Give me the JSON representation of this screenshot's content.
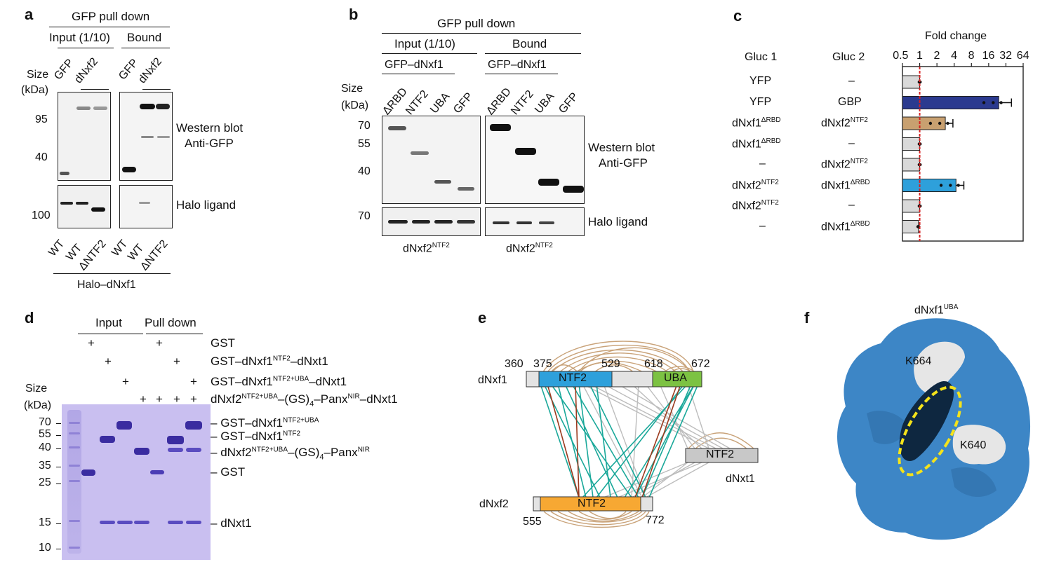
{
  "panel_a": {
    "letter": "a",
    "header": "GFP pull down",
    "input_label": "Input (1/10)",
    "bound_label": "Bound",
    "lane_labels": [
      "GFP",
      "dNxf2",
      "GFP",
      "dNxf2"
    ],
    "size_label": "Size",
    "kda_label": "(kDa)",
    "markers": [
      "95",
      "40",
      "100"
    ],
    "wb_label_1": "Western blot",
    "wb_label_2": "Anti-GFP",
    "halo_label": "Halo ligand",
    "bottom_lanes": [
      "WT",
      "WT",
      "ΔNTF2",
      "WT",
      "WT",
      "ΔNTF2"
    ],
    "footer": "Halo–dNxf1"
  },
  "panel_b": {
    "letter": "b",
    "header": "GFP pull down",
    "input_label": "Input (1/10)",
    "bound_label": "Bound",
    "bait_1": "GFP–dNxf1",
    "bait_2": "GFP–dNxf1",
    "lane_labels": [
      "ΔRBD",
      "NTF2",
      "UBA",
      "GFP",
      "ΔRBD",
      "NTF2",
      "UBA",
      "GFP"
    ],
    "size_label": "Size",
    "kda_label": "(kDa)",
    "markers": [
      "70",
      "55",
      "40",
      "70"
    ],
    "wb_label_1": "Western blot",
    "wb_label_2": "Anti-GFP",
    "halo_label": "Halo ligand",
    "footer_1": "dNxf2",
    "footer_1_sup": "NTF2",
    "footer_2": "dNxf2",
    "footer_2_sup": "NTF2"
  },
  "panel_c": {
    "letter": "c",
    "fold_label": "Fold change",
    "col1": "Gluc 1",
    "col2": "Gluc 2",
    "ticks": [
      "0.5",
      "1",
      "2",
      "4",
      "8",
      "16",
      "32",
      "64"
    ],
    "rows": [
      {
        "g1": "YFP",
        "g1_sup": "",
        "g2": "–",
        "g2_sup": ""
      },
      {
        "g1": "YFP",
        "g1_sup": "",
        "g2": "GBP",
        "g2_sup": ""
      },
      {
        "g1": "dNxf1",
        "g1_sup": "ΔRBD",
        "g2": "dNxf2",
        "g2_sup": "NTF2"
      },
      {
        "g1": "dNxf1",
        "g1_sup": "ΔRBD",
        "g2": "–",
        "g2_sup": ""
      },
      {
        "g1": "–",
        "g1_sup": "",
        "g2": "dNxf2",
        "g2_sup": "NTF2"
      },
      {
        "g1": "dNxf2",
        "g1_sup": "NTF2",
        "g2": "dNxf1",
        "g2_sup": "ΔRBD"
      },
      {
        "g1": "dNxf2",
        "g1_sup": "NTF2",
        "g2": "–",
        "g2_sup": ""
      },
      {
        "g1": "–",
        "g1_sup": "",
        "g2": "dNxf1",
        "g2_sup": "ΔRBD"
      }
    ],
    "colors": {
      "gray": "#d9d9d9",
      "navy": "#2b3a8f",
      "tan": "#c8a070",
      "blue": "#2ea0db",
      "red": "#d62020"
    }
  },
  "chart_data": {
    "type": "bar",
    "orientation": "horizontal",
    "title": "Fold change",
    "xscale": "log2",
    "xlim": [
      0.5,
      64
    ],
    "reference_line": 1,
    "categories": [
      "YFP / –",
      "YFP / GBP",
      "dNxf1ΔRBD / dNxf2NTF2",
      "dNxf1ΔRBD / –",
      "– / dNxf2NTF2",
      "dNxf2NTF2 / dNxf1ΔRBD",
      "dNxf2NTF2 / –",
      "– / dNxf1ΔRBD"
    ],
    "values": [
      1.0,
      24,
      2.8,
      1.0,
      1.0,
      4.3,
      1.0,
      0.95
    ],
    "errors": [
      0.05,
      16,
      1.0,
      0.05,
      0.05,
      1.6,
      0.05,
      0.05
    ]
  },
  "panel_d": {
    "letter": "d",
    "input_label": "Input",
    "pulldown_label": "Pull down",
    "plus": "+",
    "rows": [
      {
        "name": "GST",
        "sup": "",
        "rest": ""
      },
      {
        "name": "GST–dNxf1",
        "sup": "NTF2",
        "rest": "–dNxt1"
      },
      {
        "name": "GST–dNxf1",
        "sup": "NTF2+UBA",
        "rest": "–dNxt1"
      },
      {
        "name": "dNxf2",
        "sup": "NTF2+UBA",
        "rest": "–(GS)",
        "sub": "4",
        "rest2": "–Panx",
        "sup2": "NIR",
        "rest3": "–dNxt1"
      }
    ],
    "size_label": "Size",
    "kda_label": "(kDa)",
    "markers": [
      "70",
      "55",
      "40",
      "35",
      "25",
      "15",
      "10"
    ],
    "band_labels": [
      {
        "name": "GST–dNxf1",
        "sup": "NTF2+UBA"
      },
      {
        "name": "GST–dNxf1",
        "sup": "NTF2"
      },
      {
        "name": "dNxf2",
        "sup": "NTF2+UBA",
        "rest": "–(GS)",
        "sub": "4",
        "rest2": "–Panx",
        "sup2": "NIR"
      },
      {
        "name": "GST",
        "sup": ""
      },
      {
        "name": "dNxt1",
        "sup": ""
      }
    ],
    "gel_color": "#c9bff0"
  },
  "panel_e": {
    "letter": "e",
    "dnxf1": "dNxf1",
    "dnxf2": "dNxf2",
    "dnxt1": "dNxt1",
    "ntf2": "NTF2",
    "uba": "UBA",
    "nums_top": [
      "360",
      "375",
      "529",
      "618",
      "672"
    ],
    "nums_bottom": [
      "555",
      "772"
    ],
    "colors": {
      "ntf2_blue": "#2ea0db",
      "uba_green": "#7cc242",
      "ntf2_orange": "#f7a833",
      "teal": "#1aa89a",
      "brown": "#9b3a1e",
      "tan": "#c49a6c",
      "gray": "#bdbdbd"
    }
  },
  "panel_f": {
    "letter": "f",
    "title": "dNxf1",
    "title_sup": "UBA",
    "k1": "K664",
    "k2": "K640",
    "colors": {
      "surface": "#3d86c6",
      "patch": "#e6e6e6",
      "ellipse": "#f5e31a"
    }
  }
}
